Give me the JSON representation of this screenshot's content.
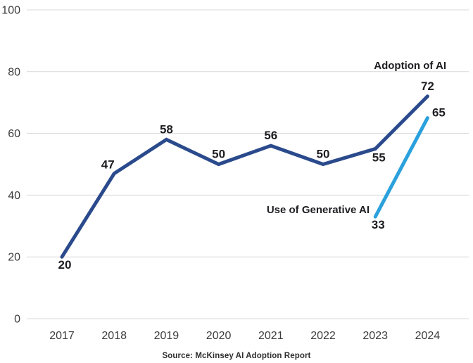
{
  "chart_data": {
    "type": "line",
    "title": "",
    "x": [
      "2017",
      "2018",
      "2019",
      "2020",
      "2021",
      "2022",
      "2023",
      "2024"
    ],
    "series": [
      {
        "name": "Adoption of AI",
        "color": "#2A4A8C",
        "values": [
          20,
          47,
          58,
          50,
          56,
          50,
          55,
          72
        ],
        "label_placements": [
          "below",
          "above-left",
          "above",
          "above",
          "above",
          "above",
          "below-right",
          "above"
        ]
      },
      {
        "name": "Use of Generative AI",
        "color": "#2AA1DC",
        "values": [
          null,
          null,
          null,
          null,
          null,
          null,
          33,
          65
        ],
        "label_placements": [
          null,
          null,
          null,
          null,
          null,
          null,
          "below",
          "right-up"
        ]
      }
    ],
    "yticks": [
      0,
      20,
      40,
      60,
      80,
      100
    ],
    "ylim": [
      0,
      100
    ],
    "grid": true,
    "legend_position": "inline-annotations",
    "source": "Source: McKinsey AI Adoption Report"
  },
  "colors": {
    "background": "#FFFFFF",
    "gridline": "#D8D8D8",
    "axis_text": "#3C3C3C",
    "data_label": "#1E1E22",
    "source_text": "#2E2E2E"
  }
}
